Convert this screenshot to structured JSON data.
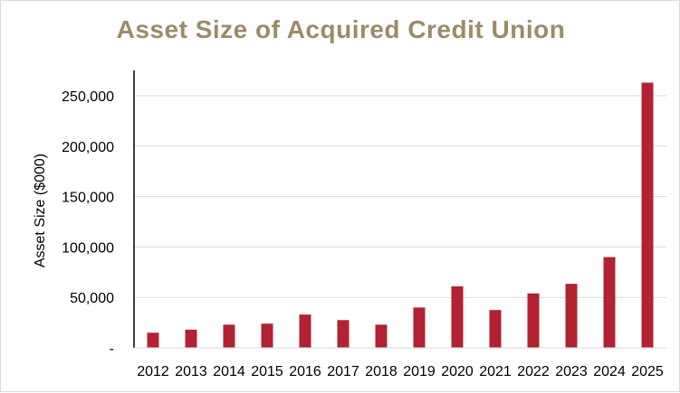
{
  "chart_data": {
    "type": "bar",
    "title": "Asset Size of Acquired Credit Union",
    "xlabel": "",
    "ylabel": "Asset Size ($000)",
    "categories": [
      "2012",
      "2013",
      "2014",
      "2015",
      "2016",
      "2017",
      "2018",
      "2019",
      "2020",
      "2021",
      "2022",
      "2023",
      "2024",
      "2025"
    ],
    "values": [
      15000,
      18000,
      23000,
      24000,
      33000,
      27500,
      23000,
      40000,
      61000,
      37500,
      54000,
      63500,
      90000,
      263000
    ],
    "ylim": [
      0,
      250000
    ],
    "yticks": [
      {
        "value": 0,
        "label": "-"
      },
      {
        "value": 50000,
        "label": "50,000"
      },
      {
        "value": 100000,
        "label": "100,000"
      },
      {
        "value": 150000,
        "label": "150,000"
      },
      {
        "value": 200000,
        "label": "200,000"
      },
      {
        "value": 250000,
        "label": "250,000"
      }
    ],
    "grid": true,
    "legend": "none",
    "colors": {
      "bar": "#b22232",
      "title": "#9c8b66",
      "grid": "#d9d9d9",
      "axis": "#000000"
    }
  }
}
